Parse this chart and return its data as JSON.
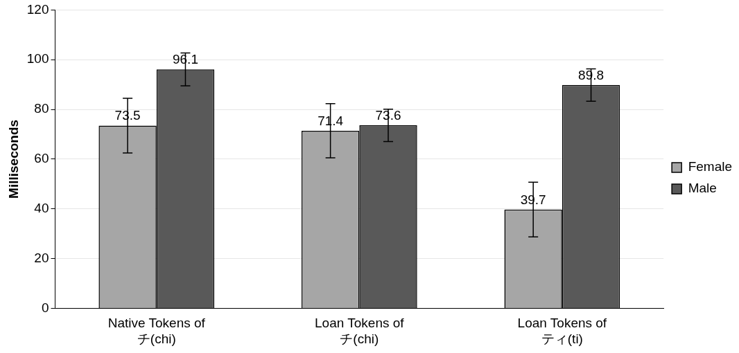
{
  "chart_data": {
    "type": "bar",
    "ylabel": "Milliseconds",
    "categories": [
      "Native Tokens of チ(chi)",
      "Loan Tokens of チ(chi)",
      "Loan Tokens of ティ(ti)"
    ],
    "series": [
      {
        "name": "Female",
        "color": "#a6a6a6",
        "values": [
          73.5,
          71.4,
          39.7
        ],
        "errors": [
          11,
          10.9,
          11
        ]
      },
      {
        "name": "Male",
        "color": "#595959",
        "values": [
          96.1,
          73.6,
          89.8
        ],
        "errors": [
          6.6,
          6.5,
          6.5
        ]
      }
    ],
    "ylim": [
      0,
      120
    ],
    "yticks": [
      0,
      20,
      40,
      60,
      80,
      100,
      120
    ],
    "grid": "y",
    "legend": "right",
    "data_labels": true
  }
}
